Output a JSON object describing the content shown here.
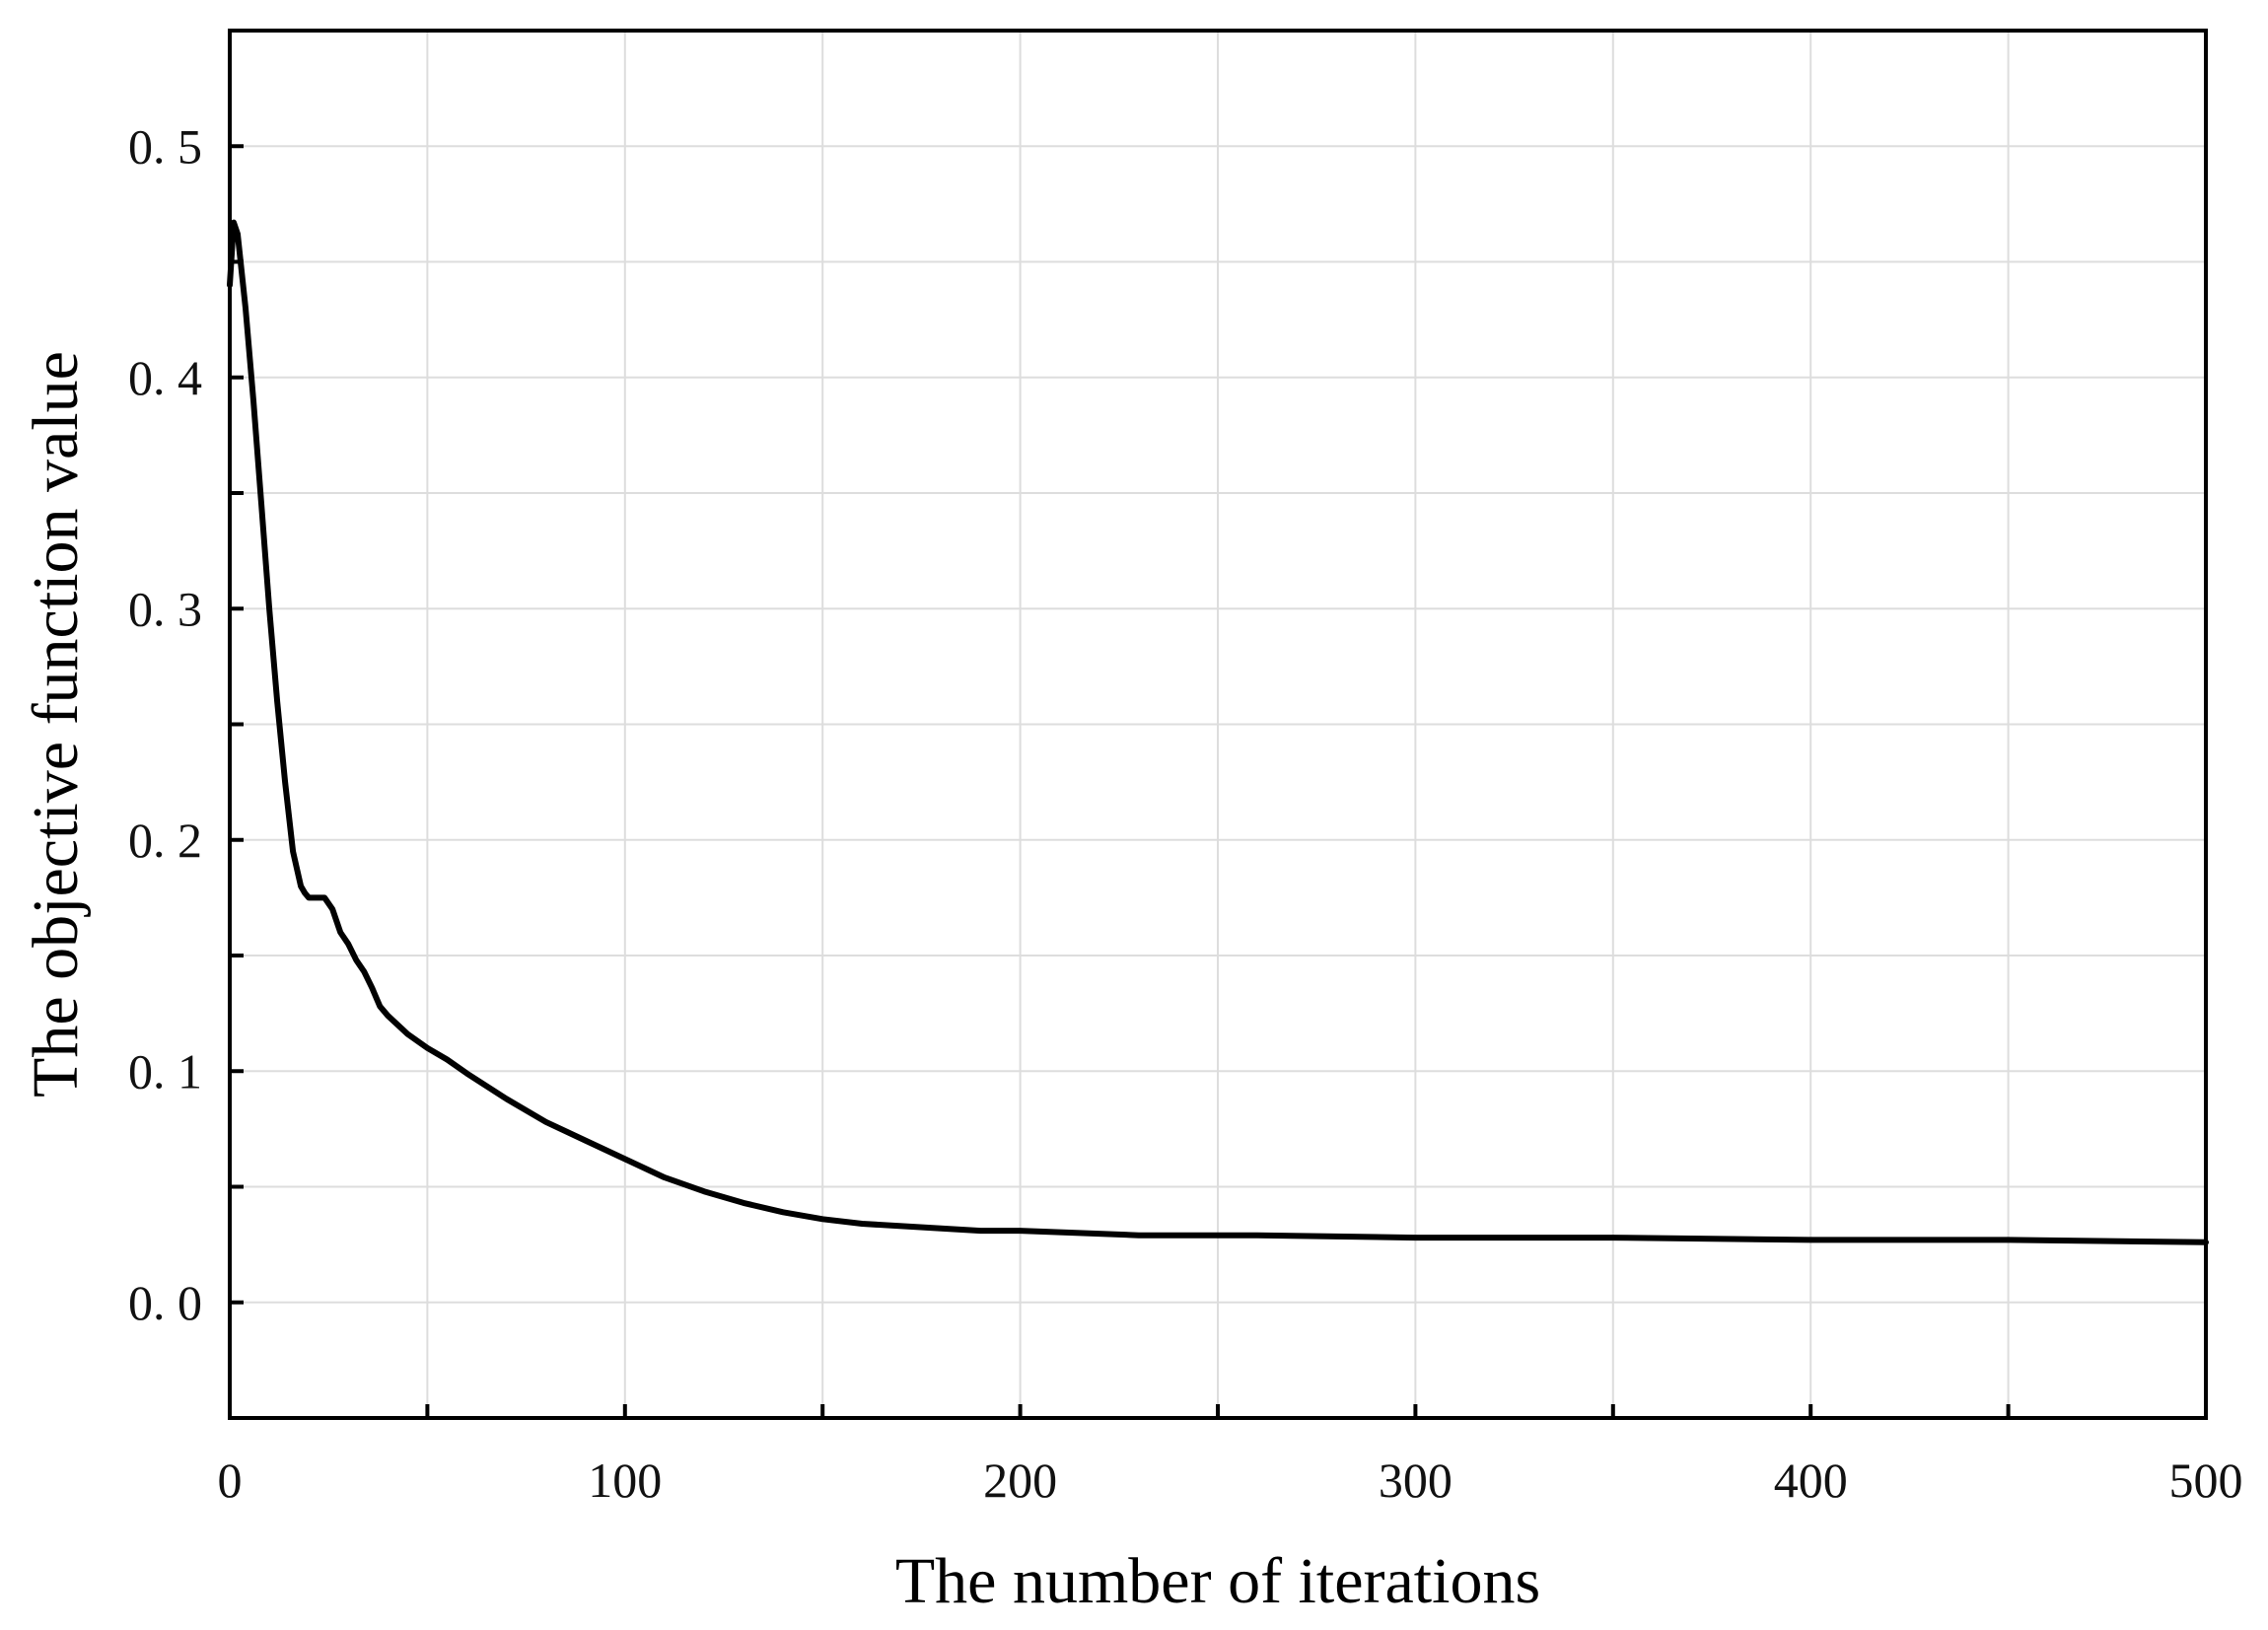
{
  "chart_data": {
    "type": "line",
    "title": "",
    "xlabel": "The number of iterations",
    "ylabel": "The objective function value",
    "xlim": [
      0,
      500
    ],
    "ylim": [
      -0.05,
      0.55
    ],
    "xticks": [
      0,
      100,
      200,
      300,
      400,
      500
    ],
    "xtick_labels": [
      "0",
      "100",
      "200",
      "300",
      "400",
      "500"
    ],
    "yticks": [
      0.0,
      0.1,
      0.2,
      0.3,
      0.4,
      0.5
    ],
    "ytick_labels": [
      "0. 0",
      "0. 1",
      "0. 2",
      "0. 3",
      "0. 4",
      "0. 5"
    ],
    "x_minor_step": 50,
    "y_minor_step": 0.05,
    "grid": true,
    "legend": "none",
    "line_color": "#000000",
    "grid_color": "#dddddd",
    "series": [
      {
        "name": "",
        "x": [
          0,
          1,
          2,
          4,
          6,
          8,
          10,
          12,
          14,
          16,
          18,
          19,
          20,
          22,
          24,
          26,
          28,
          30,
          32,
          34,
          36,
          38,
          40,
          45,
          50,
          55,
          60,
          70,
          80,
          90,
          100,
          110,
          120,
          130,
          140,
          150,
          160,
          170,
          180,
          190,
          200,
          215,
          230,
          260,
          300,
          350,
          400,
          450,
          500
        ],
        "y": [
          0.44,
          0.467,
          0.462,
          0.43,
          0.39,
          0.345,
          0.3,
          0.26,
          0.225,
          0.195,
          0.18,
          0.177,
          0.175,
          0.175,
          0.175,
          0.17,
          0.16,
          0.155,
          0.148,
          0.143,
          0.136,
          0.128,
          0.124,
          0.116,
          0.11,
          0.105,
          0.099,
          0.088,
          0.078,
          0.07,
          0.062,
          0.054,
          0.048,
          0.043,
          0.039,
          0.036,
          0.034,
          0.033,
          0.032,
          0.031,
          0.031,
          0.03,
          0.029,
          0.029,
          0.028,
          0.028,
          0.027,
          0.027,
          0.026
        ]
      }
    ]
  }
}
